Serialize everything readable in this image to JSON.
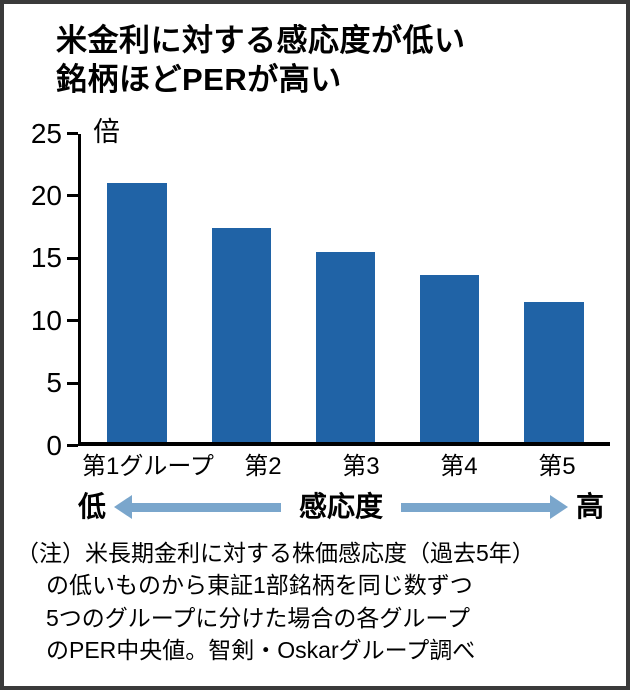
{
  "header": {
    "title_line1": "米金利に対する感応度が低い",
    "title_line2": "銘柄ほどPERが高い"
  },
  "chart_data": {
    "type": "bar",
    "title": "米金利に対する感応度が低い銘柄ほどPERが高い",
    "unit_label": "倍",
    "categories": [
      "第1グループ",
      "第2",
      "第3",
      "第4",
      "第5"
    ],
    "values": [
      21,
      17.3,
      15.4,
      13.5,
      11.3
    ],
    "ylim": [
      0,
      25
    ],
    "yticks": [
      0,
      5,
      10,
      15,
      20,
      25
    ],
    "xlabel": "感応度",
    "ylabel": "倍",
    "grid": false,
    "legend": false,
    "bar_color": "#2063a6"
  },
  "sensitivity_axis": {
    "low_label": "低",
    "center_label": "感応度",
    "high_label": "高",
    "arrow_color": "#7aa6cc"
  },
  "note": {
    "lines": [
      "（注）米長期金利に対する株価感応度（過去5年）",
      "の低いものから東証1部銘柄を同じ数ずつ",
      "5つのグループに分けた場合の各グループ",
      "のPER中央値。智剣・Oskarグループ調べ"
    ]
  }
}
